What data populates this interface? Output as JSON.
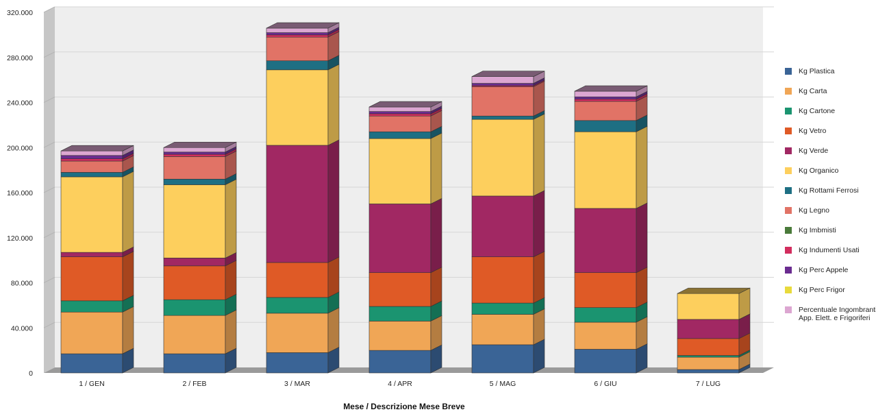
{
  "chart_data": {
    "type": "bar",
    "stacked": true,
    "style": "3d",
    "xlabel": "Mese / Descrizione Mese Breve",
    "ylabel": "",
    "ylim": [
      0,
      320000
    ],
    "ytick_values": [
      0,
      40000,
      80000,
      120000,
      160000,
      200000,
      240000,
      280000,
      320000
    ],
    "ytick_labels": [
      "0",
      "40.000",
      "80.000",
      "120.000",
      "160.000",
      "200.000",
      "240.000",
      "280.000",
      "320.000"
    ],
    "grid": true,
    "legend_position": "right",
    "categories": [
      "1 / GEN",
      "2 / FEB",
      "3 / MAR",
      "4 / APR",
      "5 / MAG",
      "6 / GIU",
      "7 / LUG"
    ],
    "series": [
      {
        "name": "Kg Plastica",
        "color": "#3a6496",
        "values": [
          17000,
          17000,
          18000,
          20000,
          25000,
          21000,
          3000
        ]
      },
      {
        "name": "Kg Carta",
        "color": "#f0a656",
        "values": [
          37000,
          34000,
          35000,
          26000,
          27000,
          24000,
          11000
        ]
      },
      {
        "name": "Kg Cartone",
        "color": "#1b9470",
        "values": [
          10000,
          14000,
          14000,
          13000,
          10000,
          13000,
          1500
        ]
      },
      {
        "name": "Kg Vetro",
        "color": "#df5a26",
        "values": [
          39000,
          30000,
          31000,
          30000,
          41000,
          31000,
          15000
        ]
      },
      {
        "name": "Kg Verde",
        "color": "#a12863",
        "values": [
          4000,
          7000,
          104000,
          61000,
          54000,
          57000,
          17000
        ]
      },
      {
        "name": "Kg Organico",
        "color": "#fdcf5d",
        "values": [
          67000,
          65000,
          67000,
          58000,
          68000,
          68000,
          23000
        ]
      },
      {
        "name": "Kg Rottami Ferrosi",
        "color": "#1e6f83",
        "values": [
          4000,
          5000,
          8000,
          6000,
          3000,
          10000,
          0
        ]
      },
      {
        "name": "Kg Legno",
        "color": "#e17366",
        "values": [
          10000,
          20000,
          21000,
          14000,
          26000,
          17000,
          0
        ]
      },
      {
        "name": "Kg Imbmisti",
        "color": "#4a7a3a",
        "values": [
          0,
          0,
          0,
          0,
          0,
          0,
          0
        ]
      },
      {
        "name": "Kg Indumenti Usati",
        "color": "#d22d5e",
        "values": [
          2000,
          2000,
          2000,
          2000,
          1000,
          2000,
          0
        ]
      },
      {
        "name": "Kg Perc Appele",
        "color": "#6a2c90",
        "values": [
          3000,
          2000,
          2000,
          2000,
          2000,
          2000,
          0
        ]
      },
      {
        "name": "Kg Perc Frigor",
        "color": "#e8da3c",
        "values": [
          0,
          0,
          0,
          0,
          0,
          0,
          0
        ]
      },
      {
        "name": "Percentuale Ingombranti App. Elett. e Frigoriferi",
        "color": "#dca6d1",
        "values": [
          4000,
          4000,
          4000,
          4000,
          6000,
          5000,
          0
        ]
      }
    ]
  }
}
